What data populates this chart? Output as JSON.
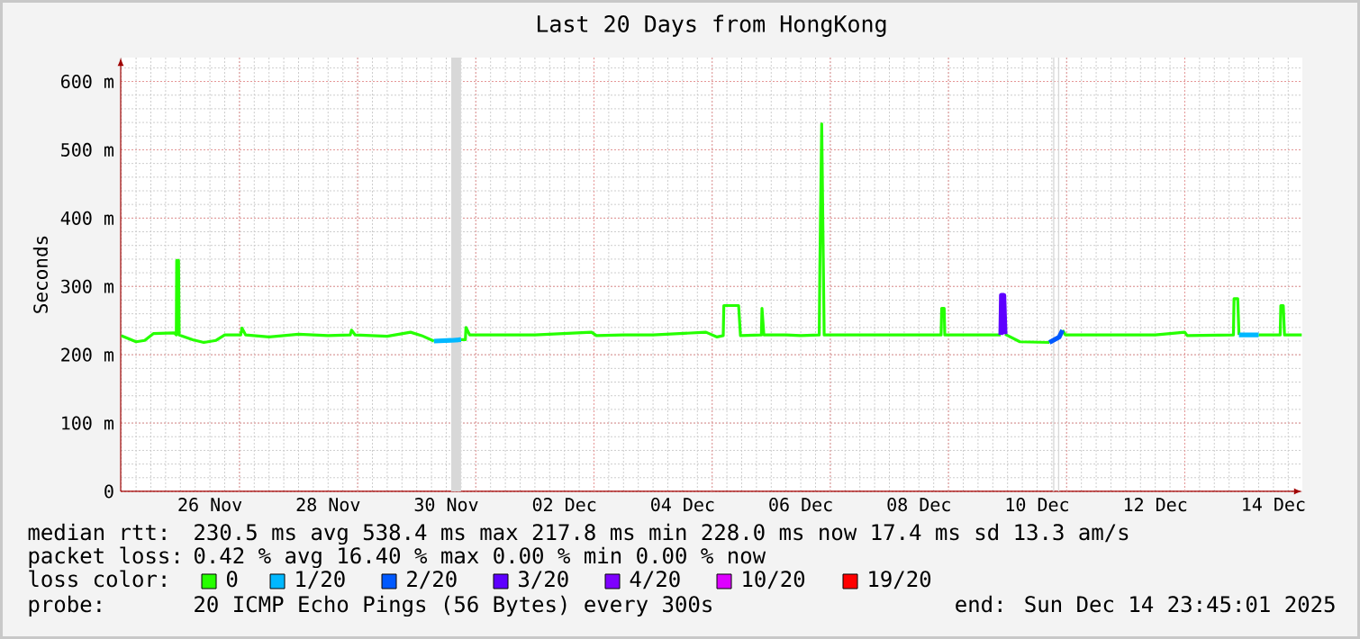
{
  "chart_data": {
    "type": "line",
    "title": "Last 20 Days from HongKong",
    "ylabel": "Seconds",
    "xlim": [
      "2025-11-24T23:45",
      "2025-12-14T23:45"
    ],
    "xticks": [
      {
        "value": "2025-11-26T12:00",
        "label": "26 Nov"
      },
      {
        "value": "2025-11-28T12:00",
        "label": "28 Nov"
      },
      {
        "value": "2025-11-30T12:00",
        "label": "30 Nov"
      },
      {
        "value": "2025-12-02T12:00",
        "label": "02 Dec"
      },
      {
        "value": "2025-12-04T12:00",
        "label": "04 Dec"
      },
      {
        "value": "2025-12-06T12:00",
        "label": "06 Dec"
      },
      {
        "value": "2025-12-08T12:00",
        "label": "08 Dec"
      },
      {
        "value": "2025-12-10T12:00",
        "label": "10 Dec"
      },
      {
        "value": "2025-12-12T12:00",
        "label": "12 Dec"
      },
      {
        "value": "2025-12-14T12:00",
        "label": "14 Dec"
      }
    ],
    "ylim": [
      0,
      635
    ],
    "yticks": [
      {
        "value": 0,
        "label": "0"
      },
      {
        "value": 100,
        "label": "100 m"
      },
      {
        "value": 200,
        "label": "200 m"
      },
      {
        "value": 300,
        "label": "300 m"
      },
      {
        "value": 400,
        "label": "400 m"
      },
      {
        "value": 500,
        "label": "500 m"
      },
      {
        "value": 600,
        "label": "600 m"
      }
    ],
    "grid": true,
    "legend": "bottom",
    "line_style": "solid",
    "marker": "none",
    "legend_title": "loss color:",
    "series": [
      {
        "name": "0",
        "color": "#26ff00",
        "x": [
          "2025-11-25T00:00",
          "2025-11-25T06:00",
          "2025-11-25T09:30",
          "2025-11-25T13:00",
          "2025-11-25T21:30",
          "2025-11-25T22:20",
          "2025-11-25T22:30",
          "2025-11-25T23:15",
          "2025-11-25T23:30",
          "2025-11-26T05:00",
          "2025-11-26T09:30",
          "2025-11-26T14:30",
          "2025-11-26T18:00",
          "2025-11-27T00:30",
          "2025-11-27T01:00",
          "2025-11-27T02:30",
          "2025-11-27T12:00",
          "2025-11-28T00:00",
          "2025-11-28T12:00",
          "2025-11-28T21:00",
          "2025-11-28T21:30",
          "2025-11-28T23:00",
          "2025-11-29T12:00",
          "2025-11-29T21:30",
          "2025-11-30T02:00",
          "2025-11-30T07:00",
          "2025-11-30T12:00",
          "2025-11-30T18:00",
          "2025-11-30T19:45",
          "2025-11-30T20:00",
          "2025-11-30T21:30",
          "2025-12-01T12:00",
          "2025-12-02T00:00",
          "2025-12-02T23:00",
          "2025-12-03T01:00",
          "2025-12-03T12:00",
          "2025-12-04T00:00",
          "2025-12-04T21:30",
          "2025-12-05T02:00",
          "2025-12-05T04:30",
          "2025-12-05T04:45",
          "2025-12-05T10:45",
          "2025-12-05T11:30",
          "2025-12-05T20:00",
          "2025-12-05T20:15",
          "2025-12-05T21:00",
          "2025-12-06T06:00",
          "2025-12-06T12:00",
          "2025-12-06T19:30",
          "2025-12-06T19:45",
          "2025-12-06T20:30",
          "2025-12-06T21:30",
          "2025-12-07T12:00",
          "2025-12-08T00:00",
          "2025-12-08T21:00",
          "2025-12-08T21:15",
          "2025-12-08T22:15",
          "2025-12-08T22:30",
          "2025-12-09T12:00",
          "2025-12-09T21:15",
          "2025-12-09T21:30",
          "2025-12-09T22:00",
          "2025-12-09T22:30",
          "2025-12-09T23:00",
          "2025-12-10T05:00",
          "2025-12-10T17:00",
          "2025-12-10T18:00",
          "2025-12-10T21:00",
          "2025-12-10T22:20",
          "2025-12-10T23:30",
          "2025-12-11T12:00",
          "2025-12-12T12:00",
          "2025-12-13T00:00",
          "2025-12-13T01:00",
          "2025-12-13T19:45",
          "2025-12-13T20:00",
          "2025-12-13T21:30",
          "2025-12-13T22:00",
          "2025-12-14T02:00",
          "2025-12-14T06:00",
          "2025-12-14T14:45",
          "2025-12-14T15:00",
          "2025-12-14T16:00",
          "2025-12-14T16:30",
          "2025-12-14T23:30"
        ],
        "values": [
          228,
          219,
          221,
          231,
          232,
          229,
          338,
          338,
          229,
          222,
          218,
          221,
          229,
          229,
          239,
          229,
          226,
          230,
          228,
          229,
          236,
          229,
          227,
          233,
          228,
          220,
          null,
          222,
          222,
          240,
          229,
          229,
          229,
          233,
          228,
          229,
          229,
          233,
          226,
          228,
          272,
          272,
          228,
          229,
          268,
          229,
          229,
          228,
          229,
          326,
          538,
          229,
          229,
          229,
          229,
          268,
          268,
          229,
          229,
          229,
          null,
          null,
          null,
          230,
          219,
          218,
          null,
          null,
          236,
          229,
          229,
          229,
          233,
          228,
          229,
          282,
          282,
          229,
          null,
          229,
          229,
          272,
          272,
          229,
          229
        ]
      },
      {
        "name": "1/20",
        "color": "#00b8ff",
        "x": [
          "2025-11-30T07:00",
          "2025-11-30T14:00",
          "2025-11-30T18:00",
          "2025-12-06T19:00",
          "2025-12-13T22:00",
          "2025-12-14T06:00"
        ],
        "values": [
          220,
          221,
          222,
          null,
          229,
          229
        ]
      },
      {
        "name": "2/20",
        "color": "#0059ff",
        "x": [
          "2025-12-10T17:00",
          "2025-12-10T19:00",
          "2025-12-10T21:00",
          "2025-12-10T22:20"
        ],
        "values": [
          218,
          222,
          226,
          236
        ]
      },
      {
        "name": "3/20",
        "color": "#5e00ff",
        "x": [
          "2025-12-09T21:15",
          "2025-12-09T21:30",
          "2025-12-09T22:30",
          "2025-12-09T23:00"
        ],
        "values": [
          229,
          287,
          287,
          230
        ]
      },
      {
        "name": "4/20",
        "color": "#7e00ff"
      },
      {
        "name": "10/20",
        "color": "#dd00ff"
      },
      {
        "name": "19/20",
        "color": "#ff0000"
      }
    ],
    "bands": [
      {
        "axis": "x",
        "from": "2025-11-30T14:00",
        "to": "2025-11-30T18:00",
        "color": "#d8d8d8"
      },
      {
        "axis": "x",
        "from": "2025-12-10T18:30",
        "to": "2025-12-10T19:00",
        "color": "#d8d8d8"
      },
      {
        "axis": "x",
        "from": "2025-12-10T20:30",
        "to": "2025-12-10T21:00",
        "color": "#d8d8d8"
      }
    ],
    "annotations": [
      "median rtt:",
      "230.5 ms avg 538.4 ms max 217.8 ms min 228.0 ms now 17.4 ms sd 13.3 am/s",
      "packet loss:",
      "0.42 % avg 16.40 % max 0.00 % min 0.00 % now",
      "probe:",
      "20 ICMP Echo Pings (56 Bytes) every 300s",
      "end: Sun Dec 14 23:45:01 2025"
    ]
  }
}
